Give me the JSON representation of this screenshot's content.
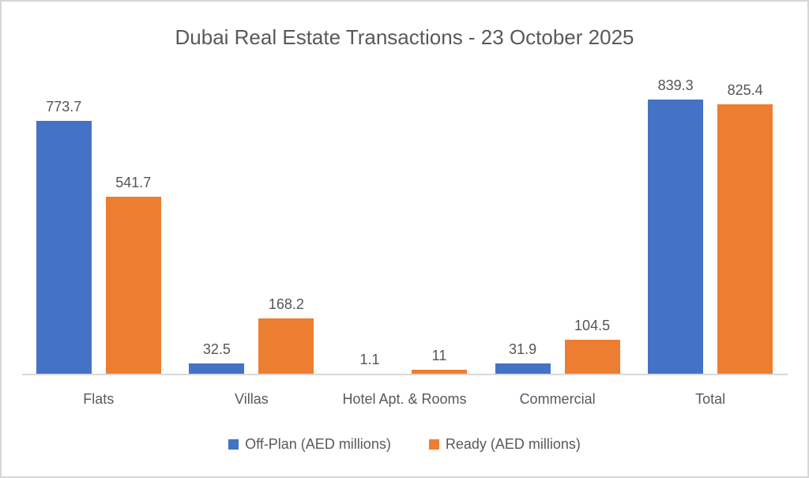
{
  "chart_data": {
    "type": "bar",
    "title": "Dubai Real Estate Transactions - 23 October 2025",
    "categories": [
      "Flats",
      "Villas",
      "Hotel Apt. & Rooms",
      "Commercial",
      "Total"
    ],
    "series": [
      {
        "name": "Off-Plan (AED millions)",
        "color": "#4472C4",
        "values": [
          773.7,
          32.5,
          1.1,
          31.9,
          839.3
        ],
        "value_labels": [
          "773.7",
          "32.5",
          "1.1",
          "31.9",
          "839.3"
        ]
      },
      {
        "name": "Ready (AED millions)",
        "color": "#ED7D31",
        "values": [
          541.7,
          168.2,
          11,
          104.5,
          825.4
        ],
        "value_labels": [
          "541.7",
          "168.2",
          "11",
          "104.5",
          "825.4"
        ]
      }
    ],
    "ylabel": "",
    "xlabel": "",
    "ylim": [
      0,
      900
    ],
    "grid": "off",
    "legend_position": "bottom",
    "data_labels": "outside-end",
    "axis_line_color": "#d9d9d9",
    "title_color": "#595959",
    "label_color": "#555555"
  }
}
